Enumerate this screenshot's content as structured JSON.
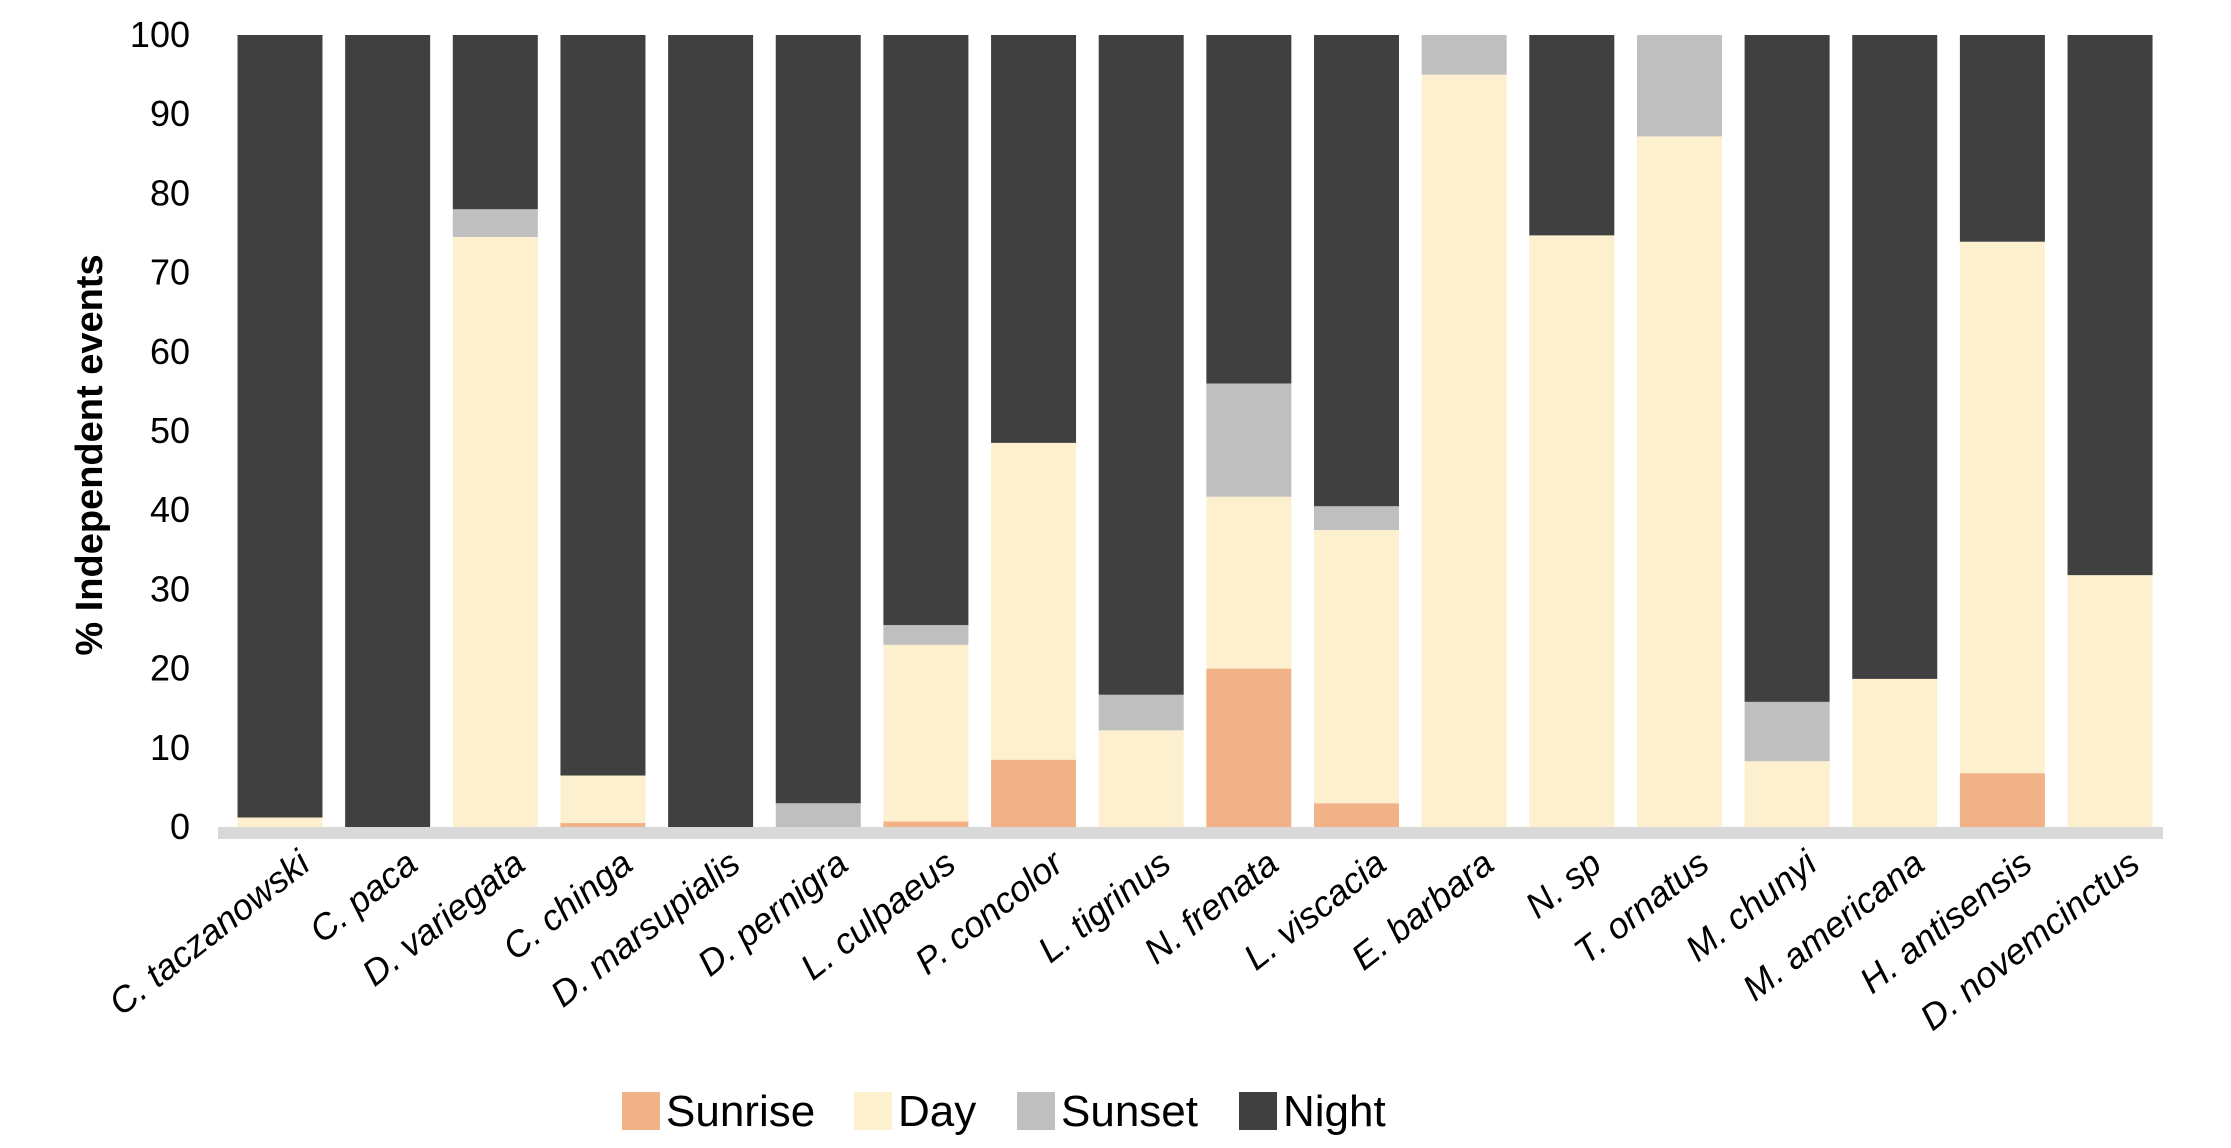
{
  "chart_data": {
    "type": "bar",
    "stacked": true,
    "ylabel": "% Independent events",
    "xlabel": "",
    "ylim": [
      0,
      100
    ],
    "yticks": [
      0,
      10,
      20,
      30,
      40,
      50,
      60,
      70,
      80,
      90,
      100
    ],
    "categories": [
      "C. taczanowski",
      "C. paca",
      "D. variegata",
      "C. chinga",
      "D. marsupialis",
      "D. pernigra",
      "L. culpaeus",
      "P. concolor",
      "L. tigrinus",
      "N. frenata",
      "L. viscacia",
      "E. barbara",
      "N. sp",
      "T. ornatus",
      "M. chunyi",
      "M. americana",
      "H. antisensis",
      "D. novemcinctus"
    ],
    "series": [
      {
        "name": "Sunrise",
        "color": "#f2b288",
        "values": [
          0,
          0,
          0,
          0.5,
          0,
          0,
          0.7,
          8.5,
          0,
          20,
          3,
          0,
          0,
          0,
          0,
          0,
          6.8,
          0
        ]
      },
      {
        "name": "Day",
        "color": "#fdf0cf",
        "values": [
          1.2,
          0,
          74.5,
          6,
          0,
          0,
          22.3,
          40,
          12.2,
          21.7,
          34.5,
          95,
          74.7,
          87.2,
          8.3,
          18.7,
          67.1,
          31.8
        ]
      },
      {
        "name": "Sunset",
        "color": "#bfbfbf",
        "values": [
          0,
          0,
          3.5,
          0,
          0,
          3,
          2.5,
          0,
          4.5,
          14.3,
          3,
          5,
          0,
          12.8,
          7.5,
          0,
          0,
          0
        ]
      },
      {
        "name": "Night",
        "color": "#404040",
        "values": [
          98.8,
          100,
          22,
          93.5,
          100,
          97,
          74.5,
          51.5,
          83.3,
          44,
          59.5,
          0,
          25.3,
          0,
          84.2,
          81.3,
          26.1,
          68.2
        ]
      }
    ],
    "legend_position": "bottom",
    "grid": false
  }
}
